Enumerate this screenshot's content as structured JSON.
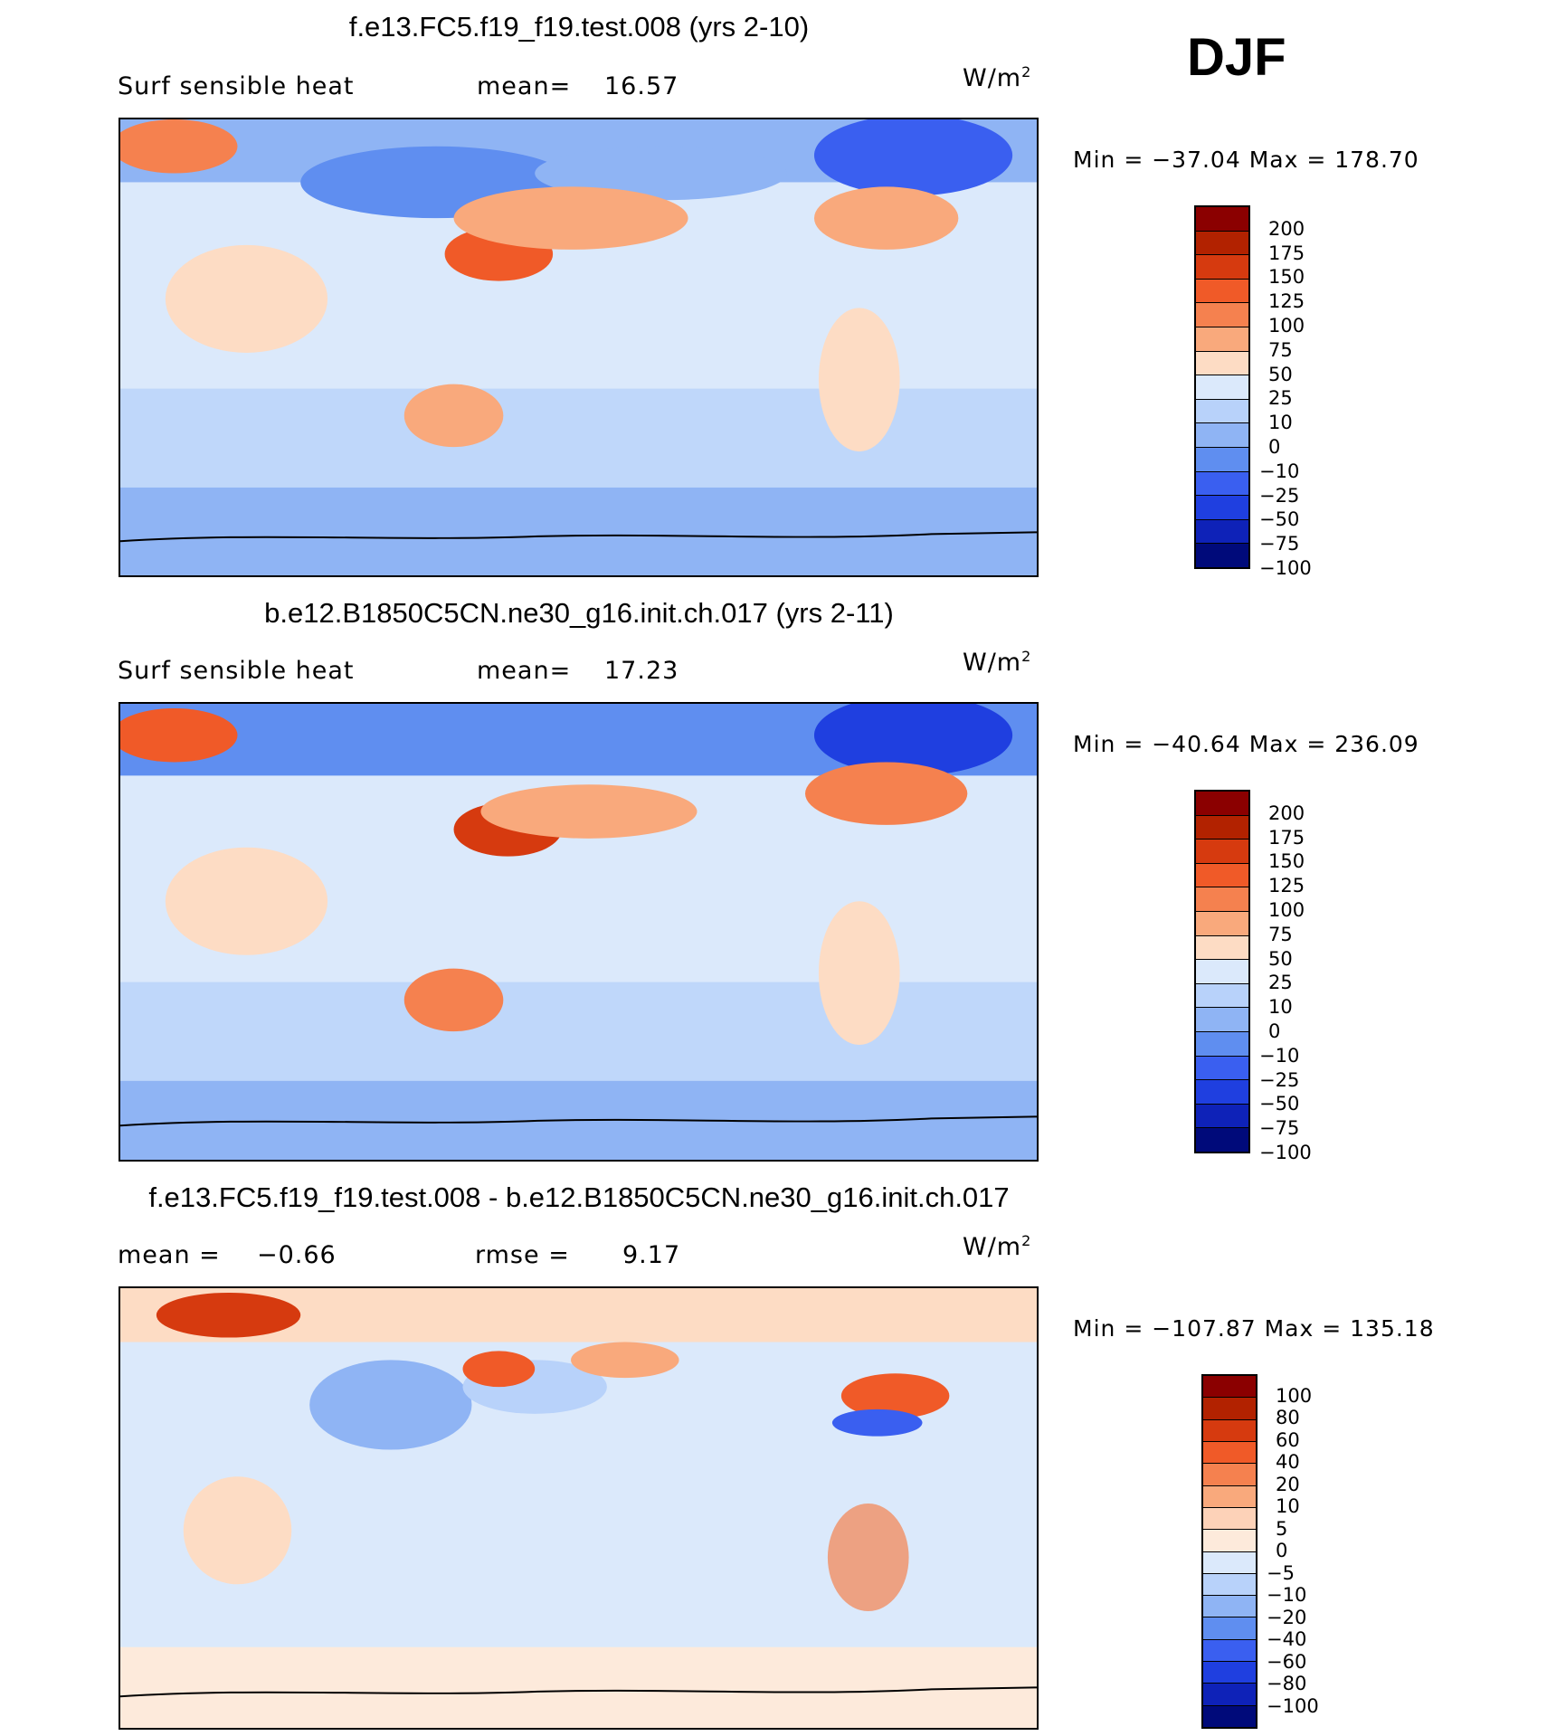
{
  "season": "DJF",
  "panels": [
    {
      "title": "f.e13.FC5.f19_f19.test.008 (yrs 2-10)",
      "left_label": "Surf sensible heat",
      "stat_label": "mean=",
      "stat_value": "16.57",
      "stat2_label": "",
      "stat2_value": "",
      "unit": "W/m",
      "unit_exp": "2",
      "min_label": "Min",
      "min_value": "−37.04",
      "max_label": "Max",
      "max_value": "178.70",
      "colorbar": {
        "colors": [
          "#8b0000",
          "#b22200",
          "#d63a0f",
          "#f05a28",
          "#f5814f",
          "#f9a97c",
          "#fddcc4",
          "#dbe9fb",
          "#b8d2fa",
          "#8fb4f4",
          "#5f8ef0",
          "#3a5ff0",
          "#1f3fe0",
          "#0e22b8",
          "#000a7a"
        ],
        "labels": [
          "200",
          "175",
          "150",
          "125",
          "100",
          "75",
          "50",
          "25",
          "10",
          "0",
          "−10",
          "−25",
          "−50",
          "−75",
          "−100"
        ]
      }
    },
    {
      "title": "b.e12.B1850C5CN.ne30_g16.init.ch.017 (yrs 2-11)",
      "left_label": "Surf sensible heat",
      "stat_label": "mean=",
      "stat_value": "17.23",
      "stat2_label": "",
      "stat2_value": "",
      "unit": "W/m",
      "unit_exp": "2",
      "min_label": "Min",
      "min_value": "−40.64",
      "max_label": "Max",
      "max_value": "236.09",
      "colorbar": {
        "colors": [
          "#8b0000",
          "#b22200",
          "#d63a0f",
          "#f05a28",
          "#f5814f",
          "#f9a97c",
          "#fddcc4",
          "#dbe9fb",
          "#b8d2fa",
          "#8fb4f4",
          "#5f8ef0",
          "#3a5ff0",
          "#1f3fe0",
          "#0e22b8",
          "#000a7a"
        ],
        "labels": [
          "200",
          "175",
          "150",
          "125",
          "100",
          "75",
          "50",
          "25",
          "10",
          "0",
          "−10",
          "−25",
          "−50",
          "−75",
          "−100"
        ]
      }
    },
    {
      "title": "f.e13.FC5.f19_f19.test.008 - b.e12.B1850C5CN.ne30_g16.init.ch.017",
      "left_label": "mean =",
      "stat_label": "",
      "stat_value": "−0.66",
      "stat2_label": "rmse =",
      "stat2_value": "9.17",
      "unit": "W/m",
      "unit_exp": "2",
      "min_label": "Min",
      "min_value": "−107.87",
      "max_label": "Max",
      "max_value": "135.18",
      "colorbar": {
        "colors": [
          "#8b0000",
          "#b22200",
          "#d63a0f",
          "#f05a28",
          "#f5814f",
          "#f9a97c",
          "#fdd2b8",
          "#fdeadb",
          "#dbe9fb",
          "#b8d2fa",
          "#8fb4f4",
          "#5f8ef0",
          "#3a5ff0",
          "#1f3fe0",
          "#0e22b8",
          "#000a7a"
        ],
        "labels": [
          "100",
          "80",
          "60",
          "40",
          "20",
          "10",
          "5",
          "0",
          "−5",
          "−10",
          "−20",
          "−40",
          "−60",
          "−80",
          "−100"
        ]
      }
    }
  ]
}
